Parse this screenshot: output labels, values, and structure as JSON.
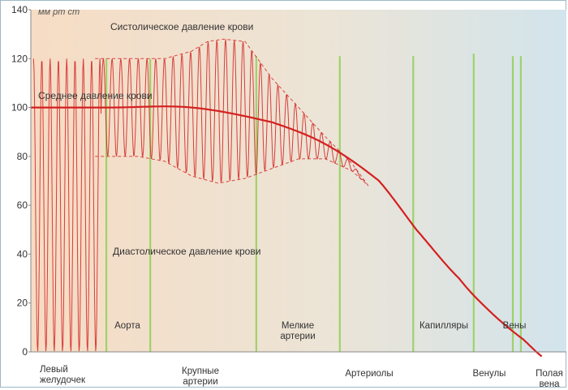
{
  "chart_data": {
    "type": "line",
    "title": "",
    "xlabel": "",
    "ylabel": "",
    "unit_label": "мм рт ст",
    "ylim": [
      0,
      140
    ],
    "yticks": [
      0,
      20,
      40,
      60,
      80,
      100,
      120,
      140
    ],
    "grid": false,
    "legend": "none",
    "colors": {
      "pressure": "#d42020",
      "divider": "#9ed26a",
      "bg_left": "#f6dcc4",
      "bg_right": "#d2e4ec"
    },
    "annotations": {
      "systolic": "Систолическое давление крови",
      "mean": "Среднее давление крови",
      "diastolic": "Диастолическое давление крови"
    },
    "segments_top": [
      "Аорта",
      "Мелкие\nартерии",
      "Капилляры",
      "Вены"
    ],
    "segments_bottom": [
      "Левый\nжелудочек",
      "Крупные\nартерии",
      "Артериолы",
      "Венулы",
      "Полая\nвена"
    ],
    "series": [
      {
        "name": "Среднее давление крови",
        "x": [
          0,
          0.15,
          0.3,
          0.45,
          0.55,
          0.65,
          0.72,
          0.8,
          0.86,
          0.92,
          0.97
        ],
        "y": [
          100,
          100,
          100,
          94,
          85,
          70,
          50,
          30,
          16,
          5,
          -4
        ]
      },
      {
        "name": "Систолическое давление крови",
        "x": [
          0.12,
          0.25,
          0.3,
          0.33,
          0.36,
          0.4,
          0.45,
          0.5,
          0.55,
          0.6,
          0.63
        ],
        "y": [
          120,
          120,
          123,
          127,
          128,
          127,
          112,
          100,
          88,
          77,
          68
        ]
      },
      {
        "name": "Диастолическое давление крови",
        "x": [
          0.12,
          0.2,
          0.25,
          0.3,
          0.35,
          0.4,
          0.45,
          0.5,
          0.55,
          0.6,
          0.63
        ],
        "y": [
          80,
          80,
          78,
          72,
          69,
          71,
          75,
          79,
          79,
          74,
          68
        ]
      }
    ]
  }
}
